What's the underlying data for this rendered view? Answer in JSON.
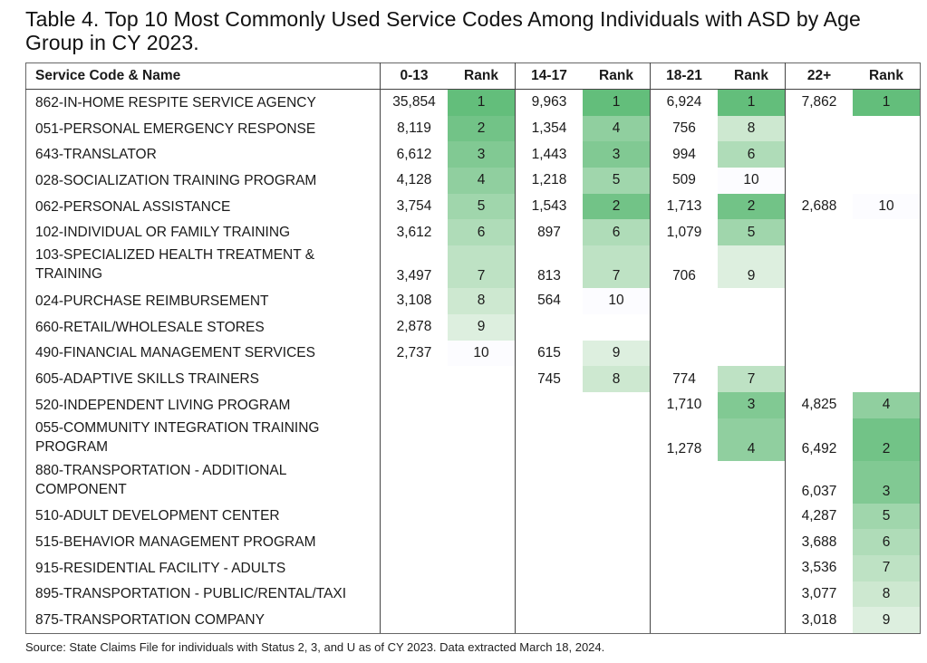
{
  "title": "Table 4. Top 10 Most Commonly Used Service Codes Among Individuals with ASD by Age Group in CY 2023.",
  "headers": {
    "name": "Service Code & Name",
    "g1": "0-13",
    "r1": "Rank",
    "g2": "14-17",
    "r2": "Rank",
    "g3": "18-21",
    "r3": "Rank",
    "g4": "22+",
    "r4": "Rank"
  },
  "rank_colors": {
    "1": "#63be7b",
    "2": "#72c387",
    "3": "#81c993",
    "4": "#90cf9f",
    "5": "#a0d6ac",
    "6": "#afdcb8",
    "7": "#bee2c4",
    "8": "#cde8d0",
    "9": "#ddefdf",
    "10": "#fcfcff"
  },
  "rows": [
    {
      "name": "862-IN-HOME RESPITE SERVICE AGENCY",
      "v": [
        "35,854",
        "1",
        "9,963",
        "1",
        "6,924",
        "1",
        "7,862",
        "1"
      ]
    },
    {
      "name": "051-PERSONAL EMERGENCY RESPONSE",
      "v": [
        "8,119",
        "2",
        "1,354",
        "4",
        "756",
        "8",
        "",
        ""
      ]
    },
    {
      "name": "643-TRANSLATOR",
      "v": [
        "6,612",
        "3",
        "1,443",
        "3",
        "994",
        "6",
        "",
        ""
      ]
    },
    {
      "name": "028-SOCIALIZATION TRAINING PROGRAM",
      "v": [
        "4,128",
        "4",
        "1,218",
        "5",
        "509",
        "10",
        "",
        ""
      ]
    },
    {
      "name": "062-PERSONAL ASSISTANCE",
      "v": [
        "3,754",
        "5",
        "1,543",
        "2",
        "1,713",
        "2",
        "2,688",
        "10"
      ]
    },
    {
      "name": "102-INDIVIDUAL OR FAMILY TRAINING",
      "v": [
        "3,612",
        "6",
        "897",
        "6",
        "1,079",
        "5",
        "",
        ""
      ]
    },
    {
      "name": "103-SPECIALIZED HEALTH TREATMENT & TRAINING",
      "v": [
        "3,497",
        "7",
        "813",
        "7",
        "706",
        "9",
        "",
        ""
      ],
      "tall": true
    },
    {
      "name": "024-PURCHASE REIMBURSEMENT",
      "v": [
        "3,108",
        "8",
        "564",
        "10",
        "",
        "",
        "",
        ""
      ]
    },
    {
      "name": "660-RETAIL/WHOLESALE STORES",
      "v": [
        "2,878",
        "9",
        "",
        "",
        "",
        "",
        "",
        ""
      ]
    },
    {
      "name": "490-FINANCIAL MANAGEMENT SERVICES",
      "v": [
        "2,737",
        "10",
        "615",
        "9",
        "",
        "",
        "",
        ""
      ]
    },
    {
      "name": "605-ADAPTIVE SKILLS TRAINERS",
      "v": [
        "",
        "",
        "745",
        "8",
        "774",
        "7",
        "",
        ""
      ]
    },
    {
      "name": "520-INDEPENDENT LIVING PROGRAM",
      "v": [
        "",
        "",
        "",
        "",
        "1,710",
        "3",
        "4,825",
        "4"
      ]
    },
    {
      "name": "055-COMMUNITY INTEGRATION TRAINING PROGRAM",
      "v": [
        "",
        "",
        "",
        "",
        "1,278",
        "4",
        "6,492",
        "2"
      ],
      "tall": true
    },
    {
      "name": "880-TRANSPORTATION - ADDITIONAL COMPONENT",
      "v": [
        "",
        "",
        "",
        "",
        "",
        "",
        "6,037",
        "3"
      ],
      "tall": true
    },
    {
      "name": "510-ADULT DEVELOPMENT CENTER",
      "v": [
        "",
        "",
        "",
        "",
        "",
        "",
        "4,287",
        "5"
      ]
    },
    {
      "name": "515-BEHAVIOR MANAGEMENT PROGRAM",
      "v": [
        "",
        "",
        "",
        "",
        "",
        "",
        "3,688",
        "6"
      ]
    },
    {
      "name": "915-RESIDENTIAL FACILITY - ADULTS",
      "v": [
        "",
        "",
        "",
        "",
        "",
        "",
        "3,536",
        "7"
      ]
    },
    {
      "name": "895-TRANSPORTATION - PUBLIC/RENTAL/TAXI",
      "v": [
        "",
        "",
        "",
        "",
        "",
        "",
        "3,077",
        "8"
      ]
    },
    {
      "name": "875-TRANSPORTATION COMPANY",
      "v": [
        "",
        "",
        "",
        "",
        "",
        "",
        "3,018",
        "9"
      ]
    }
  ],
  "source": "Source: State Claims File for individuals with Status 2, 3, and U as of CY 2023. Data extracted March 18, 2024."
}
